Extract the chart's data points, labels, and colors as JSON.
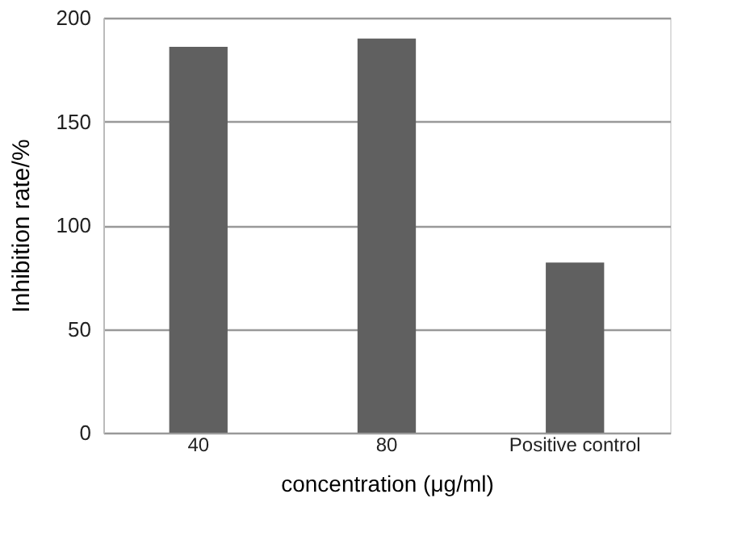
{
  "chart_data": {
    "type": "bar",
    "xlabel": "concentration (μg/ml)",
    "ylabel": "Inhibition rate/%",
    "categories": [
      "40",
      "80",
      "Positive control"
    ],
    "values": [
      186,
      190,
      82
    ],
    "color": "#606060",
    "ylim": [
      0,
      200
    ],
    "yticks": [
      0,
      50,
      100,
      150,
      200
    ],
    "grid": "y"
  }
}
